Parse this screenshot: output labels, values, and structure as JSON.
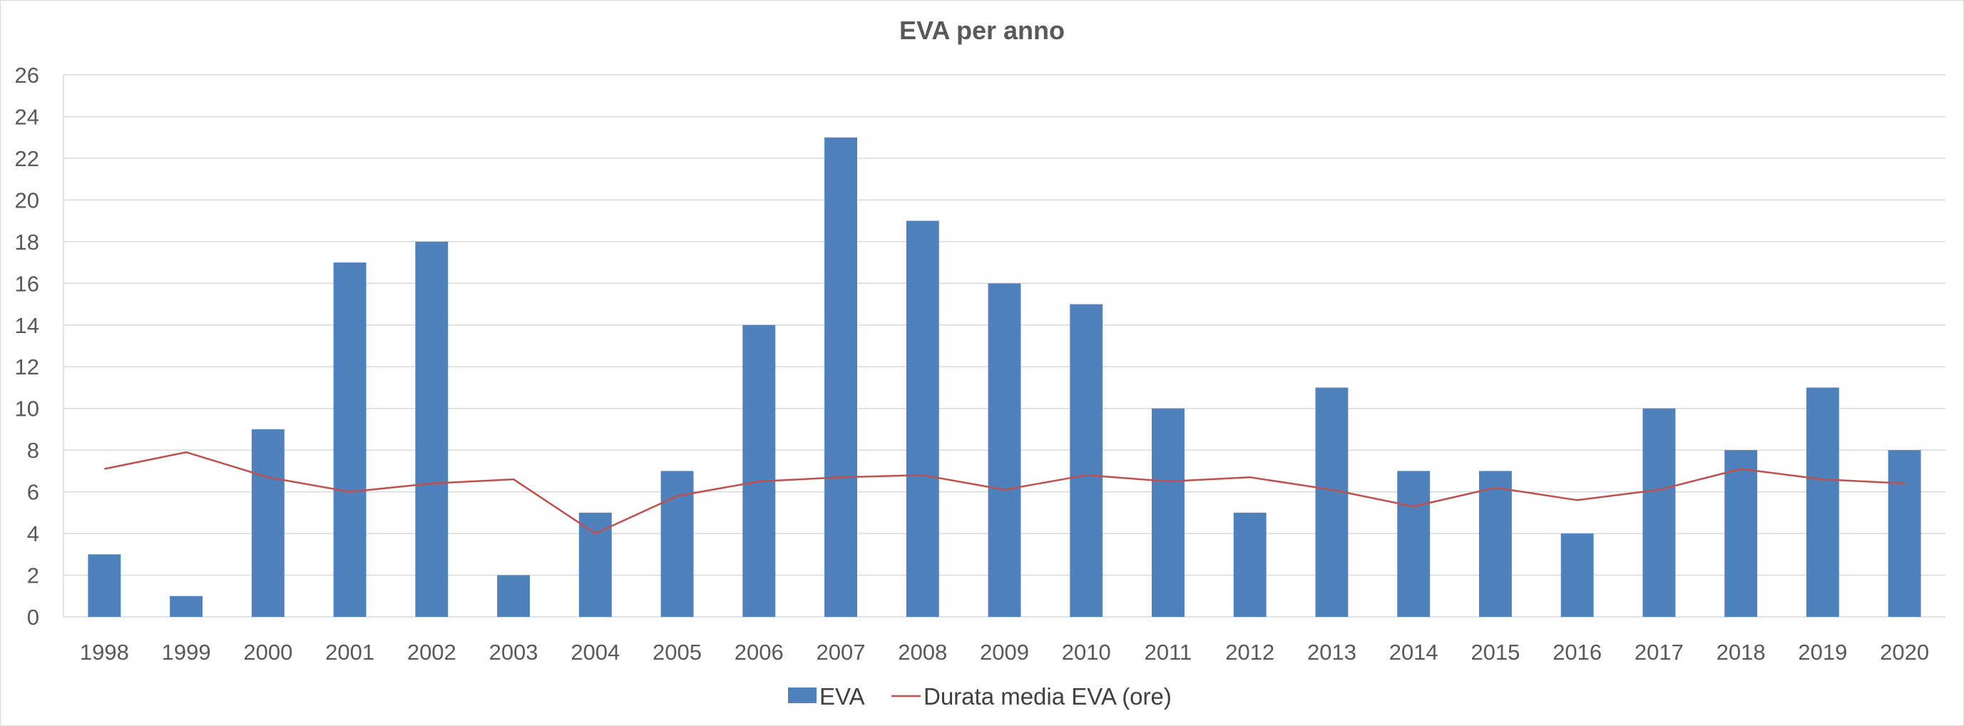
{
  "chart_data": {
    "type": "bar",
    "title": "EVA per anno",
    "categories": [
      "1998",
      "1999",
      "2000",
      "2001",
      "2002",
      "2003",
      "2004",
      "2005",
      "2006",
      "2007",
      "2008",
      "2009",
      "2010",
      "2011",
      "2012",
      "2013",
      "2014",
      "2015",
      "2016",
      "2017",
      "2018",
      "2019",
      "2020"
    ],
    "series": [
      {
        "name": "EVA",
        "type": "bar",
        "color": "#4f81bd",
        "values": [
          3,
          1,
          9,
          17,
          18,
          2,
          5,
          7,
          14,
          23,
          19,
          16,
          15,
          10,
          5,
          11,
          7,
          7,
          4,
          10,
          8,
          11,
          8
        ]
      },
      {
        "name": "Durata media EVA (ore)",
        "type": "line",
        "color": "#c0504d",
        "values": [
          7.1,
          7.9,
          6.7,
          6.0,
          6.4,
          6.6,
          4.0,
          5.8,
          6.5,
          6.7,
          6.8,
          6.1,
          6.8,
          6.5,
          6.7,
          6.1,
          5.3,
          6.2,
          5.6,
          6.1,
          7.1,
          6.6,
          6.4
        ]
      }
    ],
    "yticks": [
      "0",
      "2",
      "4",
      "6",
      "8",
      "10",
      "12",
      "14",
      "16",
      "18",
      "20",
      "22",
      "24",
      "26"
    ],
    "ylim": [
      0,
      26
    ],
    "grid": true,
    "legend_position": "bottom"
  }
}
